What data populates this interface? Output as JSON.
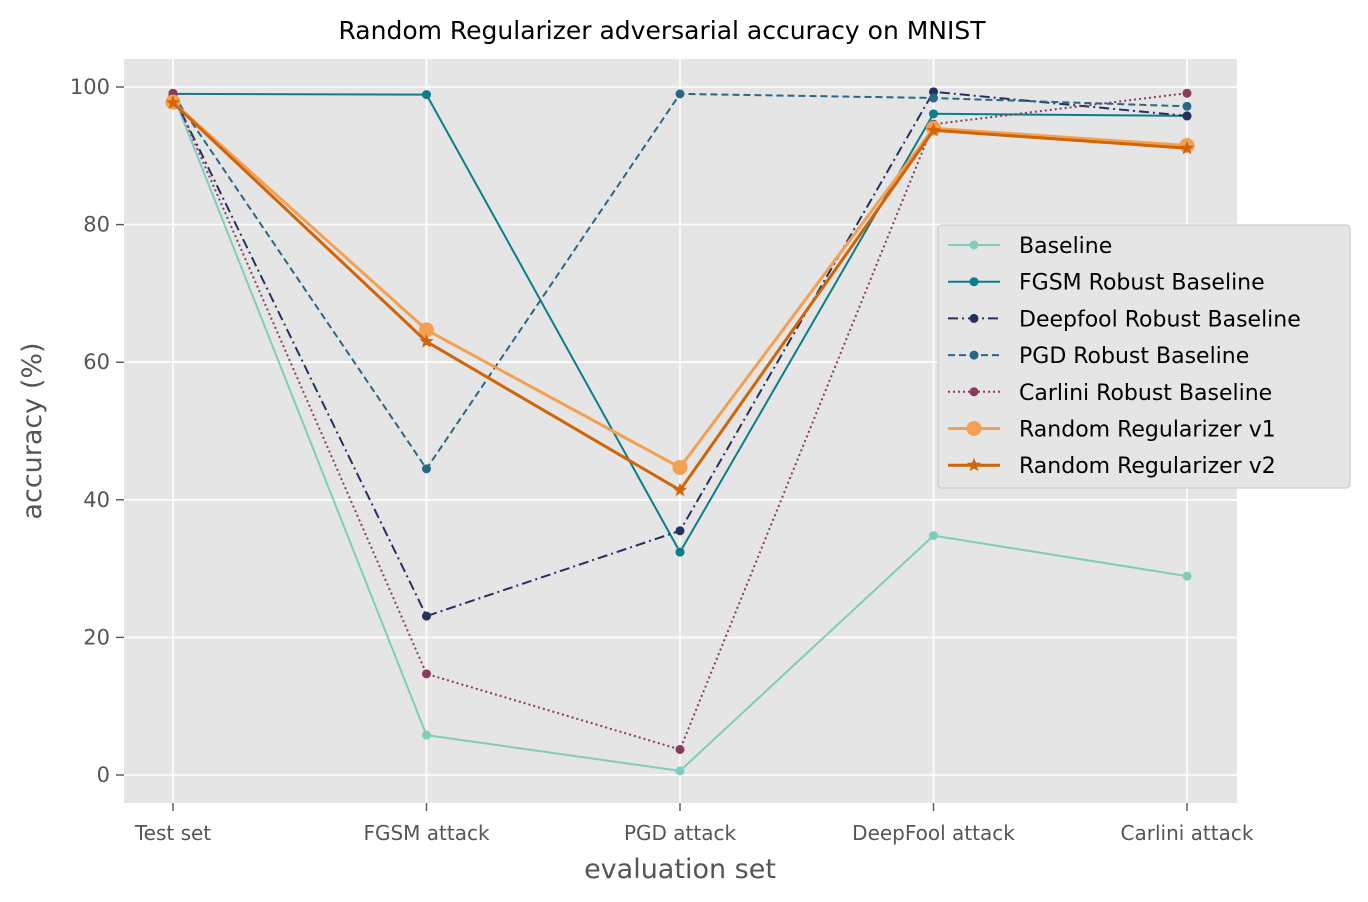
{
  "chart_data": {
    "type": "line",
    "title": "Random Regularizer adversarial accuracy on MNIST",
    "xlabel": "evaluation set",
    "ylabel": "accuracy (%)",
    "categories": [
      "Test set",
      "FGSM attack",
      "PGD attack",
      "DeepFool attack",
      "Carlini attack"
    ],
    "ylim": [
      -4,
      104
    ],
    "yticks": [
      0,
      20,
      40,
      60,
      80,
      100
    ],
    "grid": true,
    "legend_position": "right",
    "series": [
      {
        "name": "Baseline",
        "values": [
          98.9,
          5.8,
          0.6,
          34.8,
          28.9
        ],
        "color": "#7fcdbb",
        "dash": "solid",
        "marker": "circle"
      },
      {
        "name": "FGSM Robust Baseline",
        "values": [
          99.0,
          98.9,
          32.4,
          96.1,
          95.8
        ],
        "color": "#0a7d8a",
        "dash": "solid",
        "marker": "circle"
      },
      {
        "name": "Deepfool Robust Baseline",
        "values": [
          98.8,
          23.1,
          35.5,
          99.3,
          95.8
        ],
        "color": "#253060",
        "dash": "dashdot",
        "marker": "circle"
      },
      {
        "name": "PGD Robust Baseline",
        "values": [
          98.9,
          44.5,
          99.0,
          98.4,
          97.2
        ],
        "color": "#2a6685",
        "dash": "dashed",
        "marker": "circle"
      },
      {
        "name": "Carlini Robust Baseline",
        "values": [
          99.1,
          14.7,
          3.7,
          94.6,
          99.1
        ],
        "color": "#8a3a5e",
        "dash": "dotted",
        "marker": "circle"
      },
      {
        "name": "Random Regularizer v1",
        "values": [
          97.8,
          64.7,
          44.7,
          94.0,
          91.5
        ],
        "color": "#f4a052",
        "dash": "solid",
        "marker": "big-circle"
      },
      {
        "name": "Random Regularizer v2",
        "values": [
          97.7,
          63.0,
          41.4,
          93.7,
          91.1
        ],
        "color": "#d06408",
        "dash": "solid",
        "marker": "star"
      }
    ]
  }
}
